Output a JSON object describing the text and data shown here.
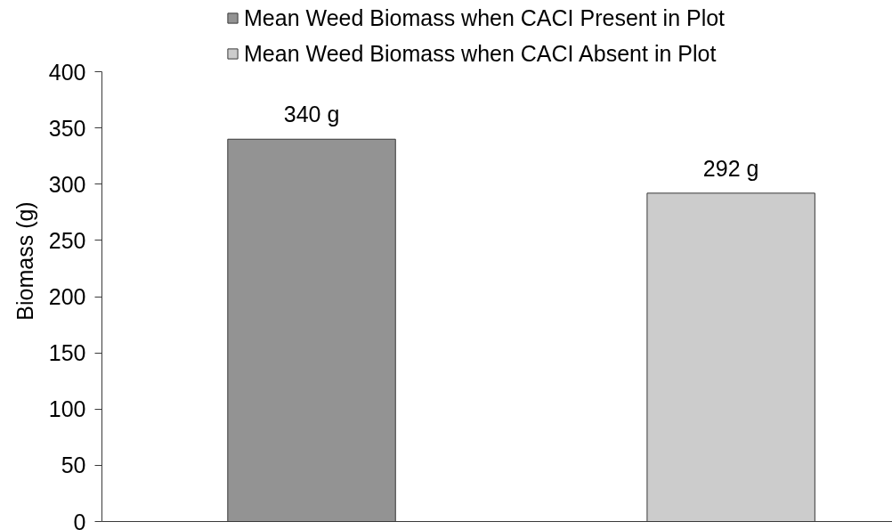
{
  "chart_data": {
    "type": "bar",
    "categories": [
      null,
      null
    ],
    "series": [
      {
        "name": "Mean Weed Biomass when CACI Present in Plot",
        "color": "#939393",
        "values": [
          340,
          null
        ],
        "value_labels": [
          "340 g",
          null
        ]
      },
      {
        "name": "Mean Weed Biomass when CACI Absent in Plot",
        "color": "#cccccc",
        "values": [
          null,
          292
        ],
        "value_labels": [
          null,
          "292 g"
        ]
      }
    ],
    "ylabel": "Biomass (g)",
    "ylim": [
      0,
      400
    ],
    "yticks": [
      0,
      50,
      100,
      150,
      200,
      250,
      300,
      350,
      400
    ],
    "grid": false,
    "legend": "top"
  }
}
